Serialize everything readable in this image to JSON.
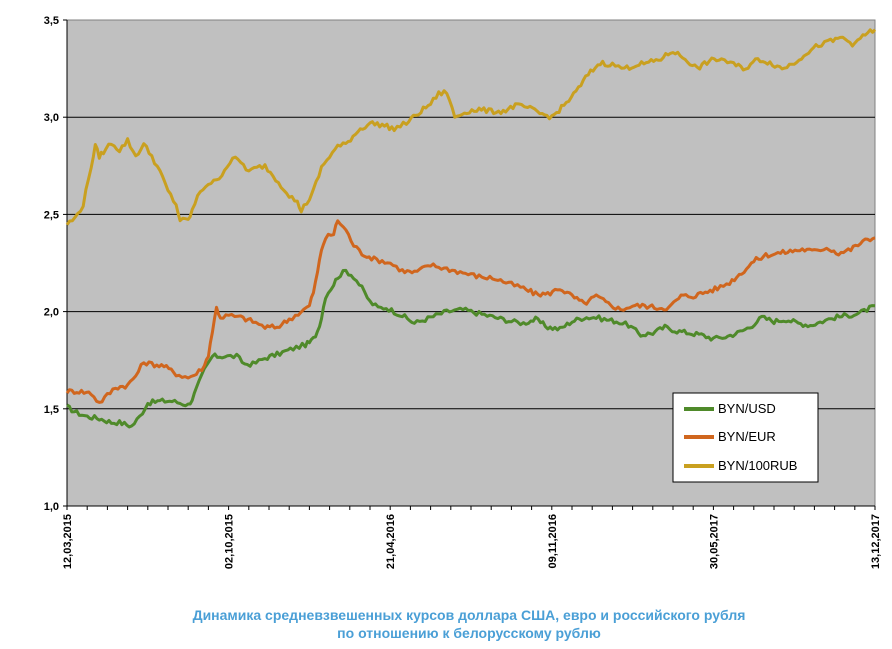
{
  "chart_data": {
    "type": "line",
    "title": "Динамика средневзвешенных курсов доллара США, евро и российского рубля по отношению к белорусскому рублю",
    "title_lines": [
      "Динамика средневзвешенных курсов доллара США, евро и российского рубля",
      "по отношению к белорусскому рублю"
    ],
    "xlabel": "",
    "ylabel": "",
    "ylim": [
      1.0,
      3.5
    ],
    "y_ticks": [
      "1,0",
      "1,5",
      "2,0",
      "2,5",
      "3,0",
      "3,5"
    ],
    "x_range": [
      0,
      1.0
    ],
    "x_ticks": [
      {
        "label": "12,03,2015",
        "x": 0.0
      },
      {
        "label": "02,10,2015",
        "x": 0.2
      },
      {
        "label": "21,04,2016",
        "x": 0.4
      },
      {
        "label": "09,11,2016",
        "x": 0.6
      },
      {
        "label": "30,05,2017",
        "x": 0.8
      },
      {
        "label": "13,12,2017",
        "x": 1.0
      }
    ],
    "grid": "horizontal",
    "background": "#c0c0c0",
    "legend_position": "lower-right",
    "series": [
      {
        "name": "BYN/USD",
        "color": "#4f8a2a",
        "x": [
          0,
          0.012,
          0.025,
          0.04,
          0.055,
          0.065,
          0.08,
          0.09,
          0.1,
          0.115,
          0.13,
          0.14,
          0.15,
          0.155,
          0.16,
          0.17,
          0.18,
          0.195,
          0.21,
          0.22,
          0.23,
          0.245,
          0.26,
          0.28,
          0.295,
          0.3,
          0.305,
          0.31,
          0.315,
          0.32,
          0.33,
          0.335,
          0.345,
          0.355,
          0.365,
          0.375,
          0.385,
          0.395,
          0.405,
          0.415,
          0.43,
          0.45,
          0.47,
          0.49,
          0.51,
          0.53,
          0.55,
          0.565,
          0.58,
          0.595,
          0.61,
          0.625,
          0.64,
          0.655,
          0.665,
          0.68,
          0.695,
          0.71,
          0.725,
          0.74,
          0.755,
          0.77,
          0.785,
          0.8,
          0.815,
          0.83,
          0.845,
          0.86,
          0.875,
          0.89,
          0.905,
          0.92,
          0.935,
          0.95,
          0.965,
          0.98,
          0.99,
          1.0
        ],
        "values": [
          1.51,
          1.48,
          1.46,
          1.45,
          1.43,
          1.43,
          1.41,
          1.46,
          1.53,
          1.54,
          1.54,
          1.53,
          1.52,
          1.55,
          1.6,
          1.7,
          1.77,
          1.77,
          1.77,
          1.73,
          1.73,
          1.76,
          1.78,
          1.81,
          1.83,
          1.84,
          1.86,
          1.9,
          1.97,
          2.08,
          2.14,
          2.18,
          2.21,
          2.18,
          2.12,
          2.05,
          2.02,
          2.02,
          2.0,
          1.98,
          1.94,
          1.97,
          2.0,
          2.01,
          1.99,
          1.97,
          1.95,
          1.94,
          1.96,
          1.92,
          1.91,
          1.95,
          1.97,
          1.97,
          1.96,
          1.95,
          1.93,
          1.88,
          1.89,
          1.92,
          1.9,
          1.89,
          1.88,
          1.86,
          1.87,
          1.89,
          1.92,
          1.97,
          1.95,
          1.96,
          1.94,
          1.93,
          1.95,
          1.97,
          1.98,
          1.99,
          2.01,
          2.03
        ]
      },
      {
        "name": "BYN/EUR",
        "color": "#d0661e",
        "x": [
          0,
          0.015,
          0.03,
          0.04,
          0.05,
          0.06,
          0.075,
          0.085,
          0.095,
          0.105,
          0.12,
          0.135,
          0.15,
          0.16,
          0.17,
          0.175,
          0.18,
          0.185,
          0.19,
          0.2,
          0.215,
          0.23,
          0.245,
          0.26,
          0.275,
          0.29,
          0.3,
          0.305,
          0.31,
          0.315,
          0.32,
          0.33,
          0.335,
          0.345,
          0.355,
          0.365,
          0.38,
          0.4,
          0.415,
          0.43,
          0.45,
          0.47,
          0.49,
          0.51,
          0.53,
          0.55,
          0.565,
          0.58,
          0.595,
          0.61,
          0.625,
          0.64,
          0.655,
          0.67,
          0.685,
          0.7,
          0.715,
          0.73,
          0.745,
          0.76,
          0.775,
          0.79,
          0.805,
          0.82,
          0.835,
          0.85,
          0.865,
          0.88,
          0.895,
          0.91,
          0.925,
          0.94,
          0.955,
          0.97,
          0.985,
          1.0
        ],
        "values": [
          1.59,
          1.59,
          1.58,
          1.53,
          1.57,
          1.61,
          1.62,
          1.67,
          1.74,
          1.73,
          1.72,
          1.68,
          1.66,
          1.68,
          1.72,
          1.78,
          1.9,
          2.02,
          1.97,
          1.98,
          1.97,
          1.95,
          1.92,
          1.92,
          1.96,
          2.0,
          2.03,
          2.1,
          2.2,
          2.32,
          2.38,
          2.4,
          2.47,
          2.42,
          2.34,
          2.3,
          2.27,
          2.25,
          2.21,
          2.2,
          2.24,
          2.22,
          2.2,
          2.18,
          2.17,
          2.14,
          2.12,
          2.09,
          2.09,
          2.12,
          2.08,
          2.04,
          2.08,
          2.04,
          2.01,
          2.03,
          2.03,
          2.02,
          2.02,
          2.08,
          2.08,
          2.1,
          2.12,
          2.15,
          2.2,
          2.26,
          2.29,
          2.3,
          2.31,
          2.32,
          2.31,
          2.33,
          2.3,
          2.32,
          2.36,
          2.38
        ]
      },
      {
        "name": "BYN/100RUB",
        "color": "#c9a020",
        "x": [
          0,
          0.01,
          0.02,
          0.03,
          0.035,
          0.04,
          0.045,
          0.055,
          0.065,
          0.075,
          0.085,
          0.095,
          0.105,
          0.115,
          0.125,
          0.135,
          0.14,
          0.15,
          0.155,
          0.165,
          0.175,
          0.185,
          0.195,
          0.205,
          0.215,
          0.225,
          0.235,
          0.245,
          0.255,
          0.265,
          0.275,
          0.285,
          0.29,
          0.3,
          0.305,
          0.315,
          0.325,
          0.335,
          0.345,
          0.36,
          0.375,
          0.39,
          0.405,
          0.42,
          0.435,
          0.45,
          0.46,
          0.47,
          0.48,
          0.495,
          0.51,
          0.525,
          0.54,
          0.555,
          0.57,
          0.585,
          0.6,
          0.615,
          0.63,
          0.645,
          0.66,
          0.675,
          0.69,
          0.705,
          0.72,
          0.735,
          0.75,
          0.765,
          0.78,
          0.795,
          0.81,
          0.825,
          0.84,
          0.855,
          0.87,
          0.885,
          0.9,
          0.915,
          0.93,
          0.945,
          0.96,
          0.975,
          0.985,
          1.0
        ],
        "values": [
          2.45,
          2.48,
          2.55,
          2.75,
          2.85,
          2.8,
          2.82,
          2.87,
          2.83,
          2.88,
          2.8,
          2.86,
          2.8,
          2.72,
          2.62,
          2.55,
          2.47,
          2.47,
          2.52,
          2.62,
          2.66,
          2.67,
          2.73,
          2.79,
          2.77,
          2.72,
          2.74,
          2.75,
          2.7,
          2.65,
          2.6,
          2.56,
          2.52,
          2.58,
          2.62,
          2.74,
          2.8,
          2.85,
          2.86,
          2.93,
          2.97,
          2.96,
          2.94,
          2.97,
          3.02,
          3.07,
          3.12,
          3.13,
          3.0,
          3.03,
          3.04,
          3.03,
          3.03,
          3.06,
          3.05,
          3.02,
          3.0,
          3.06,
          3.13,
          3.22,
          3.28,
          3.27,
          3.25,
          3.27,
          3.28,
          3.3,
          3.34,
          3.3,
          3.25,
          3.29,
          3.3,
          3.27,
          3.25,
          3.3,
          3.28,
          3.25,
          3.28,
          3.33,
          3.37,
          3.39,
          3.41,
          3.37,
          3.42,
          3.45
        ]
      }
    ]
  }
}
